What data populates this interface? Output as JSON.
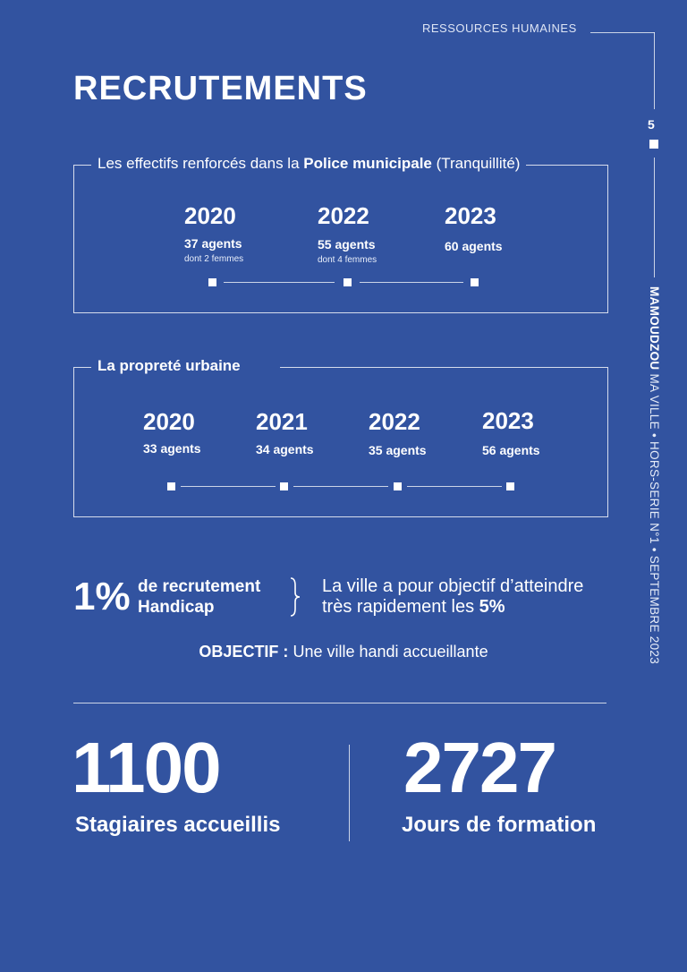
{
  "header": {
    "section_label": "RESSOURCES HUMAINES",
    "page_number": "5"
  },
  "title": "RECRUTEMENTS",
  "side_text": {
    "brand": "MAMOUDZOU",
    "rest": " MA VILLE • HORS-SERIE N°1 • SEPTEMBRE 2023"
  },
  "police": {
    "title_pre": "Les effectifs renforcés dans la ",
    "title_bold": "Police municipale",
    "title_post": " (Tranquillité)",
    "items": [
      {
        "year": "2020",
        "agents": "37 agents",
        "note": "dont 2 femmes"
      },
      {
        "year": "2022",
        "agents": "55 agents",
        "note": "dont 4 femmes"
      },
      {
        "year": "2023",
        "agents": "60 agents",
        "note": ""
      }
    ]
  },
  "proprete": {
    "title": "La propreté urbaine",
    "items": [
      {
        "year": "2020",
        "agents": "33 agents"
      },
      {
        "year": "2021",
        "agents": "34 agents"
      },
      {
        "year": "2022",
        "agents": "35 agents"
      },
      {
        "year": "2023",
        "agents": "56 agents"
      }
    ]
  },
  "handicap": {
    "percent": "1%",
    "label_line1": "de recrutement",
    "label_line2": "Handicap",
    "goal_line1": "La ville a pour objectif d’atteindre",
    "goal_line2_pre": "très rapidement les ",
    "goal_line2_bold": "5%"
  },
  "objectif": {
    "label": "OBJECTIF :",
    "text": " Une ville handi accueillante"
  },
  "stats": [
    {
      "number": "1100",
      "label": "Stagiaires accueillis"
    },
    {
      "number": "2727",
      "label": "Jours de formation"
    }
  ]
}
